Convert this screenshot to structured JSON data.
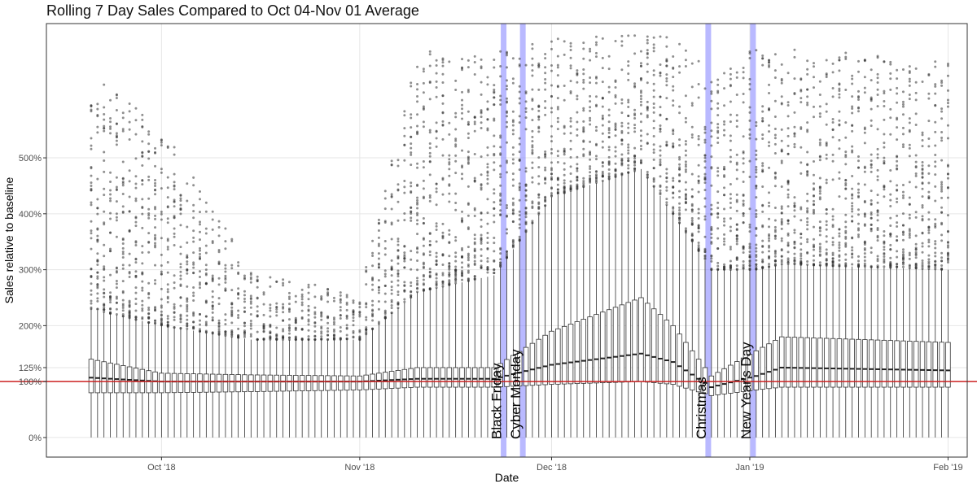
{
  "title": "Rolling 7 Day Sales Compared to Oct 04-Nov 01 Average",
  "colors": {
    "box_stroke": "#333333",
    "median": "#222222",
    "outlier": "#333333",
    "baseline": "#cc2222",
    "event_band": "#8080ff",
    "grid": "#e6e6e6",
    "panel_border": "#333333"
  },
  "chart_data": {
    "type": "boxplot",
    "title": "Rolling 7 Day Sales Compared to Oct 04-Nov 01 Average",
    "xlabel": "Date",
    "ylabel": "Sales relative to baseline",
    "x_range": [
      "2018-09-13",
      "2019-02-04"
    ],
    "y_range": [
      -0.35,
      7.4
    ],
    "x_ticks": [
      {
        "date": "2018-10-01",
        "label": "Oct '18"
      },
      {
        "date": "2018-11-01",
        "label": "Nov '18"
      },
      {
        "date": "2018-12-01",
        "label": "Dec '18"
      },
      {
        "date": "2019-01-01",
        "label": "Jan '19"
      },
      {
        "date": "2019-02-01",
        "label": "Feb '19"
      }
    ],
    "y_ticks": [
      {
        "value": 0,
        "label": "0%"
      },
      {
        "value": 1.0,
        "label": "100%"
      },
      {
        "value": 1.25,
        "label": "125%"
      },
      {
        "value": 2.0,
        "label": "200%"
      },
      {
        "value": 3.0,
        "label": "300%"
      },
      {
        "value": 4.0,
        "label": "400%"
      },
      {
        "value": 5.0,
        "label": "500%"
      }
    ],
    "baseline": 1.0,
    "grid": true,
    "events": [
      {
        "date": "2018-11-23",
        "label": "Black Friday"
      },
      {
        "date": "2018-11-26",
        "label": "Cyber Monday"
      },
      {
        "date": "2018-12-25",
        "label": "Christmas"
      },
      {
        "date": "2019-01-01",
        "label": "New Year's Day"
      }
    ],
    "box_period": {
      "start": "2018-09-20",
      "end": "2019-02-01"
    },
    "box_summary_keyframes": [
      {
        "date": "2018-09-20",
        "q1": 0.8,
        "median": 1.07,
        "q3": 1.4,
        "upper_whisker": 2.3,
        "outlier_max": 6.5
      },
      {
        "date": "2018-10-01",
        "q1": 0.8,
        "median": 1.0,
        "q3": 1.15,
        "upper_whisker": 2.0,
        "outlier_max": 5.6
      },
      {
        "date": "2018-10-15",
        "q1": 0.82,
        "median": 1.0,
        "q3": 1.12,
        "upper_whisker": 1.75,
        "outlier_max": 3.0
      },
      {
        "date": "2018-11-01",
        "q1": 0.85,
        "median": 1.0,
        "q3": 1.1,
        "upper_whisker": 1.75,
        "outlier_max": 2.6
      },
      {
        "date": "2018-11-10",
        "q1": 0.9,
        "median": 1.05,
        "q3": 1.25,
        "upper_whisker": 2.6,
        "outlier_max": 6.9
      },
      {
        "date": "2018-11-22",
        "q1": 0.9,
        "median": 1.05,
        "q3": 1.25,
        "upper_whisker": 2.9,
        "outlier_max": 6.9
      },
      {
        "date": "2018-12-01",
        "q1": 0.95,
        "median": 1.3,
        "q3": 1.9,
        "upper_whisker": 4.3,
        "outlier_max": 7.2
      },
      {
        "date": "2018-12-15",
        "q1": 1.0,
        "median": 1.5,
        "q3": 2.5,
        "upper_whisker": 4.8,
        "outlier_max": 7.2
      },
      {
        "date": "2018-12-20",
        "q1": 0.95,
        "median": 1.35,
        "q3": 2.0,
        "upper_whisker": 4.0,
        "outlier_max": 7.2
      },
      {
        "date": "2018-12-26",
        "q1": 0.75,
        "median": 0.9,
        "q3": 1.1,
        "upper_whisker": 3.0,
        "outlier_max": 6.5
      },
      {
        "date": "2019-01-02",
        "q1": 0.85,
        "median": 1.1,
        "q3": 1.55,
        "upper_whisker": 3.0,
        "outlier_max": 7.0
      },
      {
        "date": "2019-01-06",
        "q1": 0.9,
        "median": 1.25,
        "q3": 1.8,
        "upper_whisker": 3.1,
        "outlier_max": 7.0
      },
      {
        "date": "2019-02-01",
        "q1": 0.9,
        "median": 1.2,
        "q3": 1.7,
        "upper_whisker": 3.0,
        "outlier_max": 6.7
      }
    ]
  }
}
